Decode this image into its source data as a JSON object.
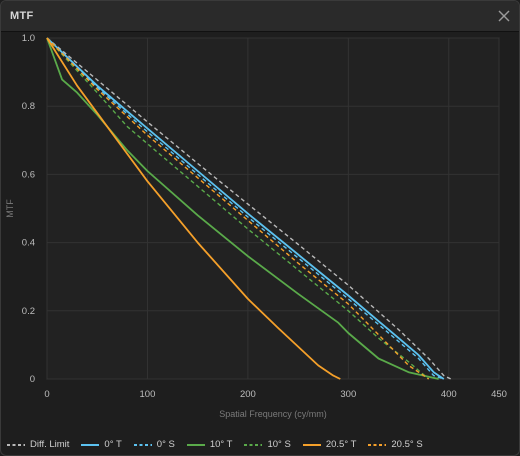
{
  "window": {
    "title": "MTF"
  },
  "colors": {
    "diff": "#b9b9b9",
    "zero": "#5cc2f0",
    "ten": "#5aaa4a",
    "twenty": "#f5a02a"
  },
  "chart_data": {
    "type": "line",
    "title": "",
    "xlabel": "Spatial Frequency (cy/mm)",
    "ylabel": "MTF",
    "xlim": [
      0,
      450
    ],
    "ylim": [
      0,
      1
    ],
    "x_ticks": [
      "0",
      "100",
      "200",
      "300",
      "400",
      "450"
    ],
    "x_tick_values": [
      0,
      100,
      200,
      300,
      400,
      450
    ],
    "y_ticks": [
      "0",
      "0.2",
      "0.4",
      "0.6",
      "0.8",
      "1.0"
    ],
    "y_tick_values": [
      0,
      0.2,
      0.4,
      0.6,
      0.8,
      1.0
    ],
    "grid": true,
    "legend_position": "bottom",
    "series": [
      {
        "name": "Diff. Limit",
        "color": "#b9b9b9",
        "dash": true,
        "points": [
          [
            0,
            1
          ],
          [
            50,
            0.877
          ],
          [
            100,
            0.754
          ],
          [
            150,
            0.632
          ],
          [
            200,
            0.513
          ],
          [
            250,
            0.395
          ],
          [
            300,
            0.275
          ],
          [
            350,
            0.145
          ],
          [
            380,
            0.06
          ],
          [
            395,
            0.01
          ],
          [
            402,
            0
          ]
        ]
      },
      {
        "name": "0° T",
        "color": "#5cc2f0",
        "dash": false,
        "points": [
          [
            0,
            1
          ],
          [
            50,
            0.86
          ],
          [
            100,
            0.735
          ],
          [
            150,
            0.61
          ],
          [
            200,
            0.485
          ],
          [
            250,
            0.365
          ],
          [
            300,
            0.245
          ],
          [
            350,
            0.12
          ],
          [
            370,
            0.07
          ],
          [
            385,
            0.02
          ],
          [
            395,
            0
          ]
        ]
      },
      {
        "name": "0° S",
        "color": "#5cc2f0",
        "dash": true,
        "points": [
          [
            0,
            1
          ],
          [
            50,
            0.855
          ],
          [
            100,
            0.725
          ],
          [
            150,
            0.6
          ],
          [
            200,
            0.475
          ],
          [
            250,
            0.355
          ],
          [
            300,
            0.235
          ],
          [
            350,
            0.11
          ],
          [
            370,
            0.06
          ],
          [
            385,
            0.01
          ],
          [
            395,
            0
          ]
        ]
      },
      {
        "name": "10° T",
        "color": "#5aaa4a",
        "dash": false,
        "points": [
          [
            0,
            1
          ],
          [
            15,
            0.878
          ],
          [
            30,
            0.84
          ],
          [
            50,
            0.775
          ],
          [
            80,
            0.67
          ],
          [
            100,
            0.61
          ],
          [
            150,
            0.48
          ],
          [
            200,
            0.36
          ],
          [
            250,
            0.25
          ],
          [
            290,
            0.165
          ],
          [
            300,
            0.135
          ],
          [
            330,
            0.06
          ],
          [
            360,
            0.02
          ],
          [
            390,
            0
          ]
        ]
      },
      {
        "name": "10° S",
        "color": "#5aaa4a",
        "dash": true,
        "points": [
          [
            0,
            1
          ],
          [
            50,
            0.84
          ],
          [
            80,
            0.74
          ],
          [
            100,
            0.69
          ],
          [
            150,
            0.565
          ],
          [
            200,
            0.44
          ],
          [
            250,
            0.32
          ],
          [
            300,
            0.2
          ],
          [
            330,
            0.12
          ],
          [
            360,
            0.05
          ],
          [
            380,
            0
          ]
        ]
      },
      {
        "name": "20.5° T",
        "color": "#f5a02a",
        "dash": false,
        "points": [
          [
            0,
            1
          ],
          [
            30,
            0.86
          ],
          [
            60,
            0.74
          ],
          [
            100,
            0.58
          ],
          [
            150,
            0.4
          ],
          [
            200,
            0.235
          ],
          [
            230,
            0.15
          ],
          [
            250,
            0.095
          ],
          [
            270,
            0.04
          ],
          [
            285,
            0.01
          ],
          [
            292,
            0
          ]
        ]
      },
      {
        "name": "20.5° S",
        "color": "#f5a02a",
        "dash": true,
        "points": [
          [
            0,
            1
          ],
          [
            50,
            0.85
          ],
          [
            100,
            0.715
          ],
          [
            150,
            0.59
          ],
          [
            200,
            0.465
          ],
          [
            250,
            0.34
          ],
          [
            300,
            0.22
          ],
          [
            330,
            0.13
          ],
          [
            360,
            0.04
          ],
          [
            380,
            0
          ]
        ]
      }
    ]
  }
}
